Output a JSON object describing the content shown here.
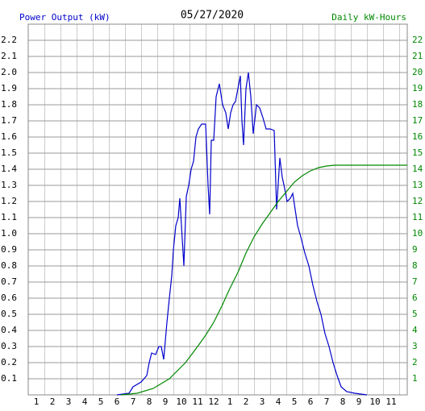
{
  "chart_data": {
    "type": "line",
    "title": "05/27/2020",
    "xlim": [
      0,
      23.5
    ],
    "xticks": [
      {
        "value": 0.5,
        "label": "1"
      },
      {
        "value": 1.5,
        "label": "2"
      },
      {
        "value": 2.5,
        "label": "3"
      },
      {
        "value": 3.5,
        "label": "4"
      },
      {
        "value": 4.5,
        "label": "5"
      },
      {
        "value": 5.5,
        "label": "6"
      },
      {
        "value": 6.5,
        "label": "7"
      },
      {
        "value": 7.5,
        "label": "8"
      },
      {
        "value": 8.5,
        "label": "9"
      },
      {
        "value": 9.5,
        "label": "10"
      },
      {
        "value": 10.5,
        "label": "11"
      },
      {
        "value": 11.5,
        "label": "12"
      },
      {
        "value": 12.5,
        "label": "1"
      },
      {
        "value": 13.5,
        "label": "2"
      },
      {
        "value": 14.5,
        "label": "3"
      },
      {
        "value": 15.5,
        "label": "4"
      },
      {
        "value": 16.5,
        "label": "5"
      },
      {
        "value": 17.5,
        "label": "6"
      },
      {
        "value": 18.5,
        "label": "7"
      },
      {
        "value": 19.5,
        "label": "8"
      },
      {
        "value": 20.5,
        "label": "9"
      },
      {
        "value": 21.5,
        "label": "10"
      },
      {
        "value": 22.5,
        "label": "11"
      }
    ],
    "ylim": [
      0,
      2.3
    ],
    "yticks": [
      0.1,
      0.2,
      0.3,
      0.4,
      0.5,
      0.6,
      0.7,
      0.8,
      0.9,
      {
        "value": 1,
        "label": "1.0"
      },
      1.1,
      1.2,
      1.3,
      1.4,
      1.5,
      1.6,
      1.7,
      1.8,
      1.9,
      {
        "value": 2,
        "label": "2.0"
      },
      2.1,
      2.2
    ],
    "y2lim": [
      0,
      23
    ],
    "y2ticks": [
      1,
      2,
      3,
      4,
      5,
      6,
      7,
      8,
      9,
      10,
      11,
      12,
      13,
      14,
      15,
      16,
      17,
      18,
      19,
      20,
      21,
      22
    ],
    "grid": true,
    "series": [
      {
        "name": "Power Output (kW)",
        "color": "#0000cc",
        "axis": "y",
        "x": [
          5.5,
          6.25,
          6.5,
          7,
          7.35,
          7.5,
          7.65,
          7.9,
          8.1,
          8.25,
          8.4,
          8.6,
          8.75,
          8.9,
          9,
          9.15,
          9.3,
          9.4,
          9.5,
          9.65,
          9.8,
          9.95,
          10.1,
          10.25,
          10.4,
          10.55,
          10.75,
          11,
          11.15,
          11.25,
          11.35,
          11.5,
          11.65,
          11.85,
          12.05,
          12.25,
          12.4,
          12.55,
          12.7,
          12.85,
          13,
          13.15,
          13.25,
          13.35,
          13.5,
          13.65,
          13.8,
          13.95,
          14.15,
          14.35,
          14.55,
          14.75,
          15,
          15.25,
          15.4,
          15.6,
          15.75,
          15.9,
          16.05,
          16.25,
          16.4,
          16.55,
          16.7,
          16.9,
          17.15,
          17.4,
          17.65,
          17.9,
          18.15,
          18.4,
          18.65,
          18.9,
          19.15,
          19.4,
          19.75,
          20.25,
          21
        ],
        "values": [
          0,
          0.01,
          0.05,
          0.08,
          0.12,
          0.2,
          0.26,
          0.25,
          0.3,
          0.3,
          0.22,
          0.45,
          0.6,
          0.74,
          0.9,
          1.05,
          1.1,
          1.22,
          1.05,
          0.8,
          1.23,
          1.3,
          1.4,
          1.45,
          1.6,
          1.65,
          1.68,
          1.68,
          1.3,
          1.12,
          1.58,
          1.58,
          1.85,
          1.93,
          1.8,
          1.75,
          1.65,
          1.75,
          1.8,
          1.82,
          1.9,
          1.98,
          1.7,
          1.55,
          1.9,
          2.0,
          1.85,
          1.62,
          1.8,
          1.78,
          1.72,
          1.65,
          1.65,
          1.64,
          1.15,
          1.47,
          1.35,
          1.28,
          1.2,
          1.22,
          1.25,
          1.15,
          1.05,
          0.98,
          0.88,
          0.8,
          0.68,
          0.58,
          0.5,
          0.38,
          0.3,
          0.2,
          0.12,
          0.05,
          0.02,
          0.01,
          0
        ]
      },
      {
        "name": "Daily kW-Hours",
        "color": "#008800",
        "axis": "y2",
        "x": [
          5.75,
          6.75,
          7.75,
          8.75,
          9.75,
          10.5,
          11,
          11.5,
          12,
          12.5,
          13,
          13.5,
          14,
          14.5,
          15,
          15.5,
          16,
          16.5,
          17,
          17.5,
          18,
          18.5,
          19,
          23.5
        ],
        "values": [
          0,
          0.1,
          0.4,
          1.0,
          2.0,
          3.0,
          3.7,
          4.5,
          5.5,
          6.6,
          7.6,
          8.8,
          9.8,
          10.6,
          11.3,
          12.0,
          12.6,
          13.2,
          13.6,
          13.9,
          14.1,
          14.2,
          14.25,
          14.25
        ]
      }
    ]
  }
}
